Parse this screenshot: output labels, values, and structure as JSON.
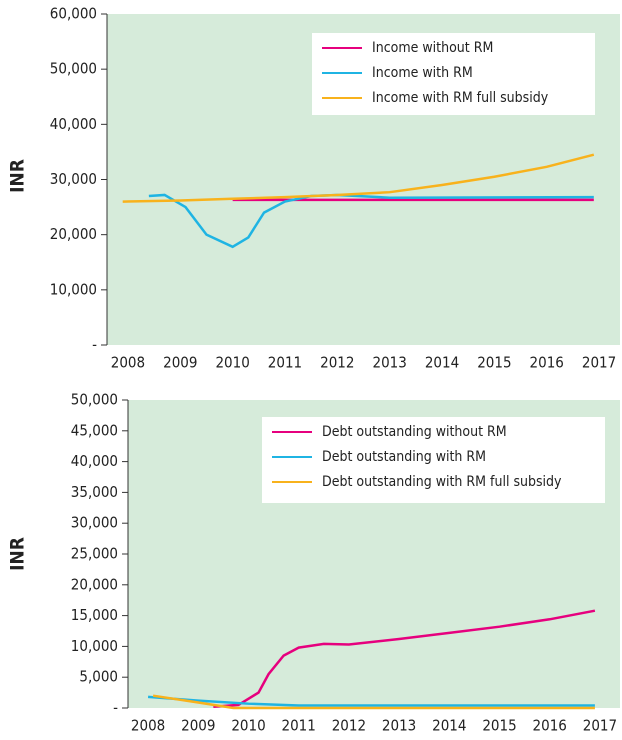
{
  "chart_data": [
    {
      "type": "line",
      "y_label": "INR",
      "xlim": [
        2007.6,
        2017.4
      ],
      "xticks": [
        2008,
        2009,
        2010,
        2011,
        2012,
        2013,
        2014,
        2015,
        2016,
        2017
      ],
      "ylim": [
        0,
        60000
      ],
      "yticks": [
        {
          "value": 0,
          "label": "-"
        },
        {
          "value": 10000,
          "label": "10,000"
        },
        {
          "value": 20000,
          "label": "20,000"
        },
        {
          "value": 30000,
          "label": "30,000"
        },
        {
          "value": 40000,
          "label": "40,000"
        },
        {
          "value": 50000,
          "label": "50,000"
        },
        {
          "value": 60000,
          "label": "60,000"
        }
      ],
      "series": [
        {
          "name": "Income without RM",
          "color": "#e6007e",
          "x": [
            2010,
            2016.9
          ],
          "values": [
            26300,
            26300
          ]
        },
        {
          "name": "Income with RM",
          "color": "#1fb4e3",
          "x": [
            2008.4,
            2008.7,
            2009.1,
            2009.5,
            2010,
            2010.3,
            2010.6,
            2011,
            2011.5,
            2012,
            2013,
            2016.9
          ],
          "values": [
            27000,
            27200,
            25000,
            20000,
            17800,
            19500,
            24000,
            26000,
            27000,
            27200,
            26700,
            26800
          ]
        },
        {
          "name": "Income with RM full subsidy",
          "color": "#f8b21c",
          "x": [
            2007.9,
            2009,
            2010,
            2011,
            2012,
            2013,
            2014,
            2015,
            2016,
            2016.9
          ],
          "values": [
            26000,
            26200,
            26500,
            26800,
            27200,
            27700,
            29000,
            30500,
            32300,
            34500
          ]
        }
      ]
    },
    {
      "type": "line",
      "y_label": "INR",
      "xlim": [
        2007.6,
        2017.4
      ],
      "xticks": [
        2008,
        2009,
        2010,
        2011,
        2012,
        2013,
        2014,
        2015,
        2016,
        2017
      ],
      "ylim": [
        0,
        50000
      ],
      "yticks": [
        {
          "value": 0,
          "label": "-"
        },
        {
          "value": 5000,
          "label": "5,000"
        },
        {
          "value": 10000,
          "label": "10,000"
        },
        {
          "value": 15000,
          "label": "15,000"
        },
        {
          "value": 20000,
          "label": "20,000"
        },
        {
          "value": 25000,
          "label": "25,000"
        },
        {
          "value": 30000,
          "label": "30,000"
        },
        {
          "value": 35000,
          "label": "35,000"
        },
        {
          "value": 40000,
          "label": "40,000"
        },
        {
          "value": 45000,
          "label": "45,000"
        },
        {
          "value": 50000,
          "label": "50,000"
        }
      ],
      "series": [
        {
          "name": "Debt outstanding without RM",
          "color": "#e6007e",
          "x": [
            2009.3,
            2009.8,
            2010.2,
            2010.4,
            2010.7,
            2011,
            2011.5,
            2012,
            2013,
            2014,
            2015,
            2016,
            2016.9
          ],
          "values": [
            200,
            500,
            2500,
            5500,
            8500,
            9800,
            10400,
            10300,
            11200,
            12200,
            13200,
            14400,
            15800
          ]
        },
        {
          "name": "Debt outstanding with RM",
          "color": "#1fb4e3",
          "x": [
            2008,
            2009,
            2010,
            2011,
            2016.9
          ],
          "values": [
            1800,
            1200,
            700,
            400,
            400
          ]
        },
        {
          "name": "Debt outstanding with RM full subsidy",
          "color": "#f8b21c",
          "x": [
            2008.1,
            2009,
            2009.7,
            2016.9
          ],
          "values": [
            2000,
            900,
            0,
            0
          ]
        }
      ]
    }
  ]
}
